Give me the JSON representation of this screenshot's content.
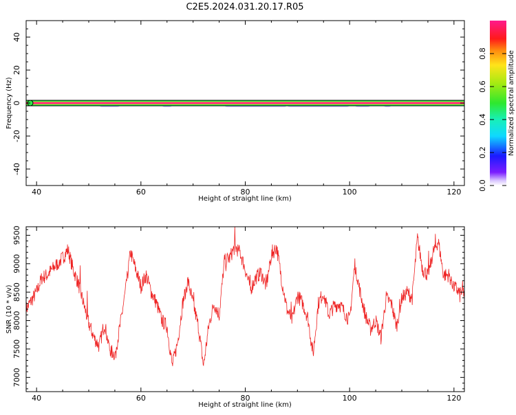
{
  "title": "C2E5.2024.031.20.17.R05",
  "colors": {
    "axis": "#000000",
    "snr_line": "#ee2222",
    "spec_core": "#ff1d8a",
    "spec_band_outer": "#000000",
    "spec_band_green": "#2ee84a",
    "spec_halo": "#7b68ff"
  },
  "chart_data": [
    {
      "type": "heatmap",
      "name": "spectrogram",
      "xlabel": "Height of straight line (km)",
      "ylabel": "Frequency (Hz)",
      "xlim": [
        38,
        122
      ],
      "ylim": [
        -50,
        50
      ],
      "x_ticks": [
        40,
        60,
        80,
        100,
        120
      ],
      "y_ticks": [
        -40,
        -20,
        0,
        20,
        40
      ],
      "description_values": {
        "peak_frequency_hz": 0,
        "halo_segments_km": [
          [
            52,
            56
          ],
          [
            64,
            66
          ],
          [
            76,
            88
          ],
          [
            88,
            100
          ],
          [
            101,
            104
          ],
          [
            106.5,
            108
          ]
        ]
      },
      "colorbar": {
        "label": "Normalized spectral amplitude",
        "range": [
          0,
          1
        ],
        "ticks": [
          "0.0",
          "0.2",
          "0.4",
          "0.6",
          "0.8"
        ]
      }
    },
    {
      "type": "line",
      "name": "snr",
      "xlabel": "Height of straight line (km)",
      "ylabel": "SNR (10 * v/v)",
      "xlim": [
        38,
        122
      ],
      "ylim": [
        6750,
        9650
      ],
      "x_ticks": [
        40,
        60,
        80,
        100,
        120
      ],
      "y_ticks": [
        7000,
        7500,
        8000,
        8500,
        9000,
        9500
      ],
      "x": [
        38,
        39,
        40,
        41,
        42,
        43,
        44,
        45,
        46,
        47,
        48,
        49,
        50,
        51,
        52,
        53,
        54,
        55,
        56,
        57,
        58,
        59,
        60,
        61,
        62,
        63,
        64,
        65,
        66,
        67,
        68,
        69,
        70,
        71,
        72,
        73,
        74,
        75,
        76,
        77,
        78,
        79,
        80,
        81,
        82,
        83,
        84,
        85,
        86,
        87,
        88,
        89,
        90,
        91,
        92,
        93,
        94,
        95,
        96,
        97,
        98,
        99,
        100,
        101,
        102,
        103,
        104,
        105,
        106,
        107,
        108,
        109,
        110,
        111,
        112,
        113,
        114,
        115,
        116,
        117,
        118,
        119,
        120,
        121,
        122
      ],
      "values": [
        8200,
        8350,
        8500,
        8750,
        8800,
        8900,
        9000,
        9100,
        9250,
        8900,
        8650,
        8300,
        7950,
        7700,
        7550,
        7950,
        7500,
        7400,
        7900,
        8500,
        9200,
        8900,
        8600,
        8800,
        8500,
        8300,
        8000,
        7900,
        7200,
        7600,
        8300,
        8700,
        8300,
        7900,
        7200,
        7900,
        8300,
        8100,
        9050,
        9100,
        9300,
        9200,
        8900,
        8550,
        8750,
        8850,
        8600,
        9150,
        9300,
        8700,
        8200,
        8000,
        8450,
        8300,
        8050,
        7400,
        8300,
        8500,
        8100,
        8250,
        8300,
        8150,
        8000,
        9000,
        8500,
        8100,
        7850,
        8000,
        7700,
        8400,
        8300,
        7900,
        8400,
        8500,
        8400,
        9450,
        8900,
        8800,
        9200,
        9400,
        8800,
        8800,
        8600,
        8500,
        8500
      ]
    }
  ]
}
